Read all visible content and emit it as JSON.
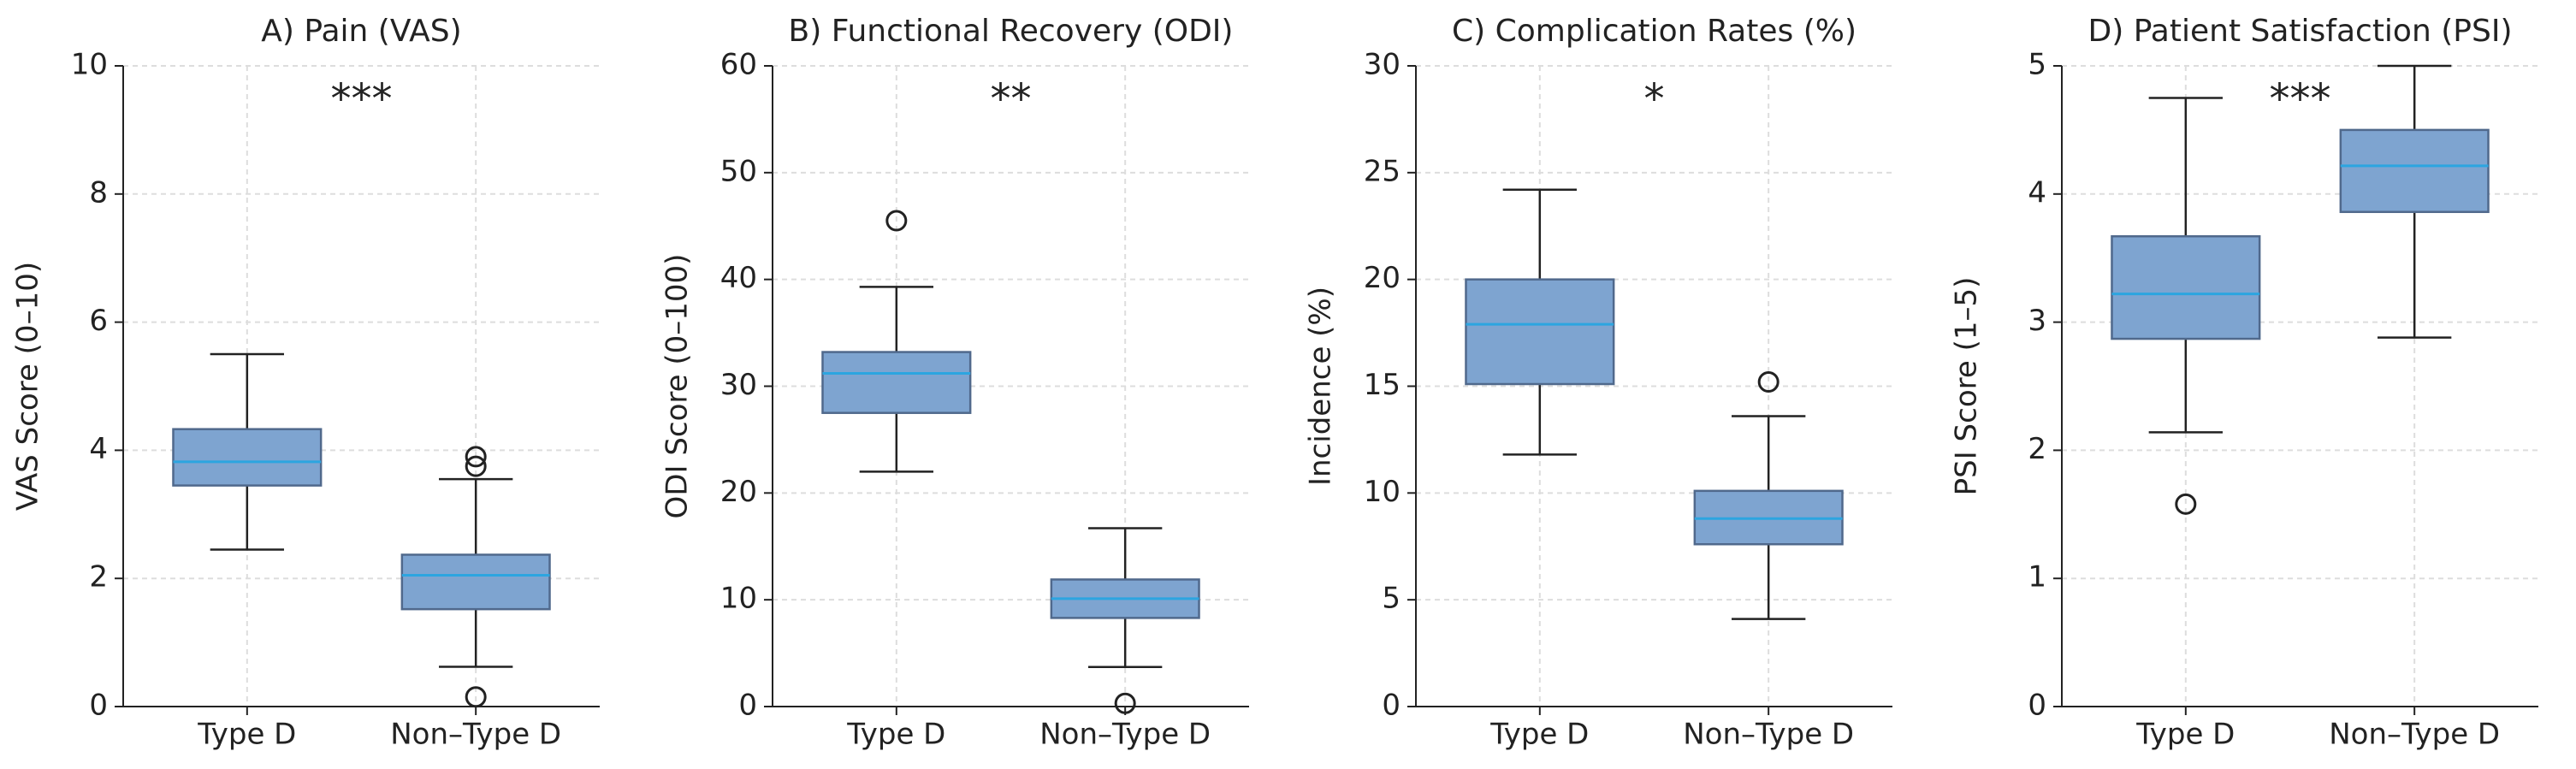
{
  "chart_data": [
    {
      "type": "box",
      "title": "A) Pain (VAS)",
      "ylabel": "VAS Score (0–10)",
      "annotation": "***",
      "categories": [
        "Type D",
        "Non–Type D"
      ],
      "ylim": [
        0,
        10
      ],
      "yticks": [
        0,
        2,
        4,
        6,
        8,
        10
      ],
      "grid": true,
      "color": "#7ea4d0",
      "median_color": "#2ca5e0",
      "boxes": [
        {
          "whislo": 2.45,
          "q1": 3.45,
          "med": 3.82,
          "q3": 4.33,
          "whishi": 5.5,
          "fliers": []
        },
        {
          "whislo": 0.62,
          "q1": 1.52,
          "med": 2.05,
          "q3": 2.37,
          "whishi": 3.55,
          "fliers": [
            3.9,
            3.75,
            0.15
          ]
        }
      ]
    },
    {
      "type": "box",
      "title": "B) Functional Recovery (ODI)",
      "ylabel": "ODI Score (0–100)",
      "annotation": "**",
      "categories": [
        "Type D",
        "Non–Type D"
      ],
      "ylim": [
        0,
        60
      ],
      "yticks": [
        0,
        10,
        20,
        30,
        40,
        50,
        60
      ],
      "grid": true,
      "color": "#7ea4d0",
      "median_color": "#2ca5e0",
      "boxes": [
        {
          "whislo": 22,
          "q1": 27.5,
          "med": 31.2,
          "q3": 33.2,
          "whishi": 39.3,
          "fliers": [
            45.5
          ]
        },
        {
          "whislo": 3.7,
          "q1": 8.3,
          "med": 10.1,
          "q3": 11.9,
          "whishi": 16.7,
          "fliers": [
            0.3
          ]
        }
      ]
    },
    {
      "type": "box",
      "title": "C) Complication Rates (%)",
      "ylabel": "Incidence (%)",
      "annotation": "*",
      "categories": [
        "Type D",
        "Non–Type D"
      ],
      "ylim": [
        0,
        30
      ],
      "yticks": [
        0,
        5,
        10,
        15,
        20,
        25,
        30
      ],
      "grid": true,
      "color": "#7ea4d0",
      "median_color": "#2ca5e0",
      "boxes": [
        {
          "whislo": 11.8,
          "q1": 15.1,
          "med": 17.9,
          "q3": 20,
          "whishi": 24.2,
          "fliers": []
        },
        {
          "whislo": 4.1,
          "q1": 7.6,
          "med": 8.8,
          "q3": 10.1,
          "whishi": 13.6,
          "fliers": [
            15.2
          ]
        }
      ]
    },
    {
      "type": "box",
      "title": "D) Patient Satisfaction (PSI)",
      "ylabel": "PSI Score (1–5)",
      "annotation": "***",
      "categories": [
        "Type D",
        "Non–Type D"
      ],
      "ylim": [
        0,
        5
      ],
      "yticks": [
        0,
        1,
        2,
        3,
        4,
        5
      ],
      "grid": true,
      "color": "#7ea4d0",
      "median_color": "#2ca5e0",
      "boxes": [
        {
          "whislo": 2.14,
          "q1": 2.87,
          "med": 3.22,
          "q3": 3.67,
          "whishi": 4.75,
          "fliers": [
            1.58
          ]
        },
        {
          "whislo": 2.88,
          "q1": 3.86,
          "med": 4.22,
          "q3": 4.5,
          "whishi": 5,
          "fliers": []
        }
      ]
    }
  ]
}
